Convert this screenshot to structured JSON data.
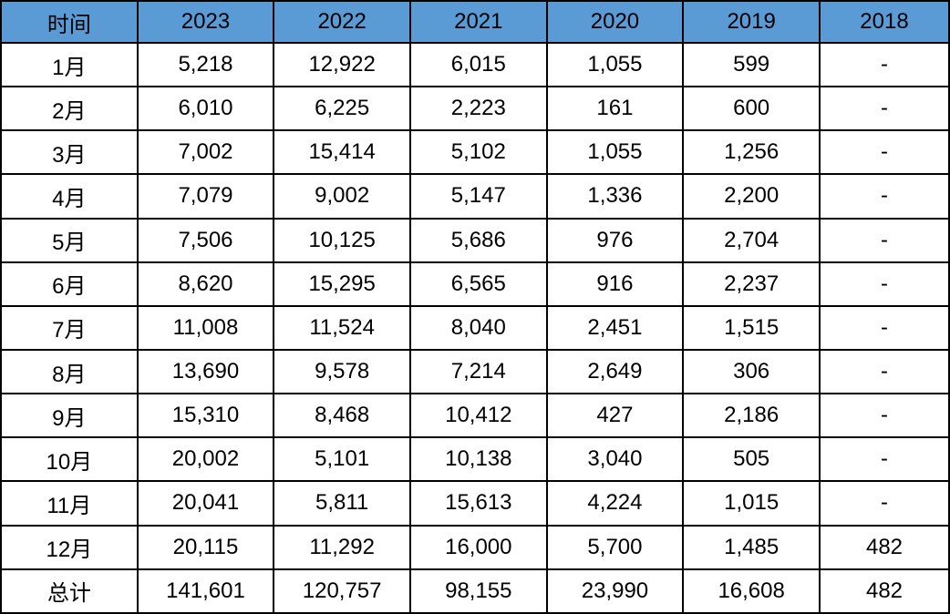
{
  "table": {
    "header_bg": "#5B9BD5",
    "border_color": "#000000",
    "text_color": "#000000",
    "columns": [
      "时间",
      "2023",
      "2022",
      "2021",
      "2020",
      "2019",
      "2018"
    ],
    "rows": [
      [
        "1月",
        "5,218",
        "12,922",
        "6,015",
        "1,055",
        "599",
        "-"
      ],
      [
        "2月",
        "6,010",
        "6,225",
        "2,223",
        "161",
        "600",
        "-"
      ],
      [
        "3月",
        "7,002",
        "15,414",
        "5,102",
        "1,055",
        "1,256",
        "-"
      ],
      [
        "4月",
        "7,079",
        "9,002",
        "5,147",
        "1,336",
        "2,200",
        "-"
      ],
      [
        "5月",
        "7,506",
        "10,125",
        "5,686",
        "976",
        "2,704",
        "-"
      ],
      [
        "6月",
        "8,620",
        "15,295",
        "6,565",
        "916",
        "2,237",
        "-"
      ],
      [
        "7月",
        "11,008",
        "11,524",
        "8,040",
        "2,451",
        "1,515",
        "-"
      ],
      [
        "8月",
        "13,690",
        "9,578",
        "7,214",
        "2,649",
        "306",
        "-"
      ],
      [
        "9月",
        "15,310",
        "8,468",
        "10,412",
        "427",
        "2,186",
        "-"
      ],
      [
        "10月",
        "20,002",
        "5,101",
        "10,138",
        "3,040",
        "505",
        "-"
      ],
      [
        "11月",
        "20,041",
        "5,811",
        "15,613",
        "4,224",
        "1,015",
        "-"
      ],
      [
        "12月",
        "20,115",
        "11,292",
        "16,000",
        "5,700",
        "1,485",
        "482"
      ],
      [
        "总计",
        "141,601",
        "120,757",
        "98,155",
        "23,990",
        "16,608",
        "482"
      ]
    ]
  },
  "chart_data": {
    "type": "table",
    "title": "",
    "xlabel": "时间",
    "categories": [
      "1月",
      "2月",
      "3月",
      "4月",
      "5月",
      "6月",
      "7月",
      "8月",
      "9月",
      "10月",
      "11月",
      "12月",
      "总计"
    ],
    "series": [
      {
        "name": "2023",
        "values": [
          5218,
          6010,
          7002,
          7079,
          7506,
          8620,
          11008,
          13690,
          15310,
          20002,
          20041,
          20115,
          141601
        ]
      },
      {
        "name": "2022",
        "values": [
          12922,
          6225,
          15414,
          9002,
          10125,
          15295,
          11524,
          9578,
          8468,
          5101,
          5811,
          11292,
          120757
        ]
      },
      {
        "name": "2021",
        "values": [
          6015,
          2223,
          5102,
          5147,
          5686,
          6565,
          8040,
          7214,
          10412,
          10138,
          15613,
          16000,
          98155
        ]
      },
      {
        "name": "2020",
        "values": [
          1055,
          161,
          1055,
          1336,
          976,
          916,
          2451,
          2649,
          427,
          3040,
          4224,
          5700,
          23990
        ]
      },
      {
        "name": "2019",
        "values": [
          599,
          600,
          1256,
          2200,
          2704,
          2237,
          1515,
          306,
          2186,
          505,
          1015,
          1485,
          16608
        ]
      },
      {
        "name": "2018",
        "values": [
          null,
          null,
          null,
          null,
          null,
          null,
          null,
          null,
          null,
          null,
          null,
          482,
          482
        ]
      }
    ]
  }
}
